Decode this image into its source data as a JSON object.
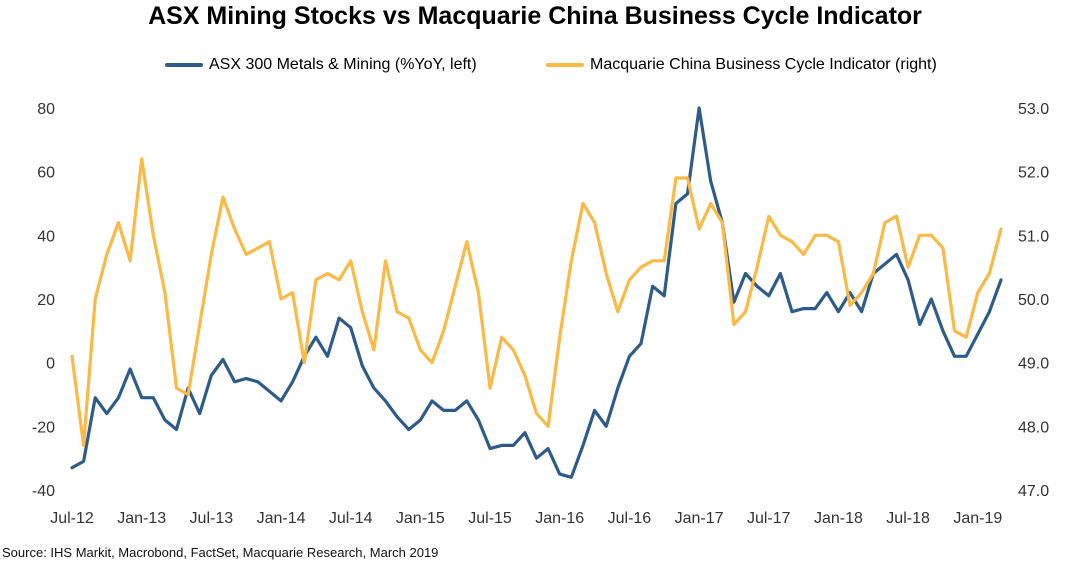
{
  "colors": {
    "series1": "#2e5c8a",
    "series2": "#fbb945",
    "axis_text": "#333333"
  },
  "chart_data": {
    "type": "line",
    "title": "ASX Mining Stocks vs Macquarie China Business Cycle Indicator",
    "source": "Source: IHS Markit, Macrobond, FactSet, Macquarie Research, March 2019",
    "x_start": "Jul-12",
    "x_step": "month",
    "x_ticks": [
      "Jul-12",
      "Jan-13",
      "Jul-13",
      "Jan-14",
      "Jul-14",
      "Jan-15",
      "Jul-15",
      "Jan-16",
      "Jul-16",
      "Jan-17",
      "Jul-17",
      "Jan-18",
      "Jul-18",
      "Jan-19"
    ],
    "y_left_ticks": [
      "80",
      "60",
      "40",
      "20",
      "0",
      "-20",
      "-40"
    ],
    "y_right_ticks": [
      "53.0",
      "52.0",
      "51.0",
      "50.0",
      "49.0",
      "48.0",
      "47.0"
    ],
    "ylim_left": [
      -40,
      80
    ],
    "ylim_right": [
      47,
      53
    ],
    "legend_position": "top",
    "series": [
      {
        "name": "ASX 300 Metals & Mining (%YoY, left)",
        "axis": "left",
        "values": [
          -33,
          -31,
          -11,
          -16,
          -11,
          -2,
          -11,
          -11,
          -18,
          -21,
          -8,
          -16,
          -4,
          1,
          -6,
          -5,
          -6,
          -9,
          -12,
          -6,
          2,
          8,
          2,
          14,
          11,
          -1,
          -8,
          -12,
          -17,
          -21,
          -18,
          -12,
          -15,
          -15,
          -12,
          -18,
          -27,
          -26,
          -26,
          -22,
          -30,
          -27,
          -35,
          -36,
          -26,
          -15,
          -20,
          -8,
          2,
          6,
          24,
          21,
          50,
          53,
          80,
          57,
          44,
          19,
          28,
          24,
          21,
          28,
          16,
          17,
          17,
          22,
          16,
          22,
          16,
          28,
          31,
          34,
          26,
          12,
          20,
          10,
          2,
          2,
          9,
          16,
          26
        ]
      },
      {
        "name": "Macquarie China Business Cycle Indicator (right)",
        "axis": "right",
        "values": [
          49.1,
          47.7,
          50.0,
          50.7,
          51.2,
          50.6,
          52.2,
          51.0,
          50.1,
          48.6,
          48.5,
          49.6,
          50.7,
          51.6,
          51.1,
          50.7,
          50.8,
          50.9,
          50.0,
          50.1,
          49.0,
          50.3,
          50.4,
          50.3,
          50.6,
          49.8,
          49.2,
          50.6,
          49.8,
          49.7,
          49.2,
          49.0,
          49.5,
          50.2,
          50.9,
          50.1,
          48.6,
          49.4,
          49.2,
          48.8,
          48.2,
          48.0,
          49.4,
          50.6,
          51.5,
          51.2,
          50.4,
          49.8,
          50.3,
          50.5,
          50.6,
          50.6,
          51.9,
          51.9,
          51.1,
          51.5,
          51.2,
          49.6,
          49.8,
          50.5,
          51.3,
          51.0,
          50.9,
          50.7,
          51.0,
          51.0,
          50.9,
          49.9,
          50.1,
          50.4,
          51.2,
          51.3,
          50.5,
          51.0,
          51.0,
          50.8,
          49.5,
          49.4,
          50.1,
          50.4,
          51.1
        ]
      }
    ]
  }
}
